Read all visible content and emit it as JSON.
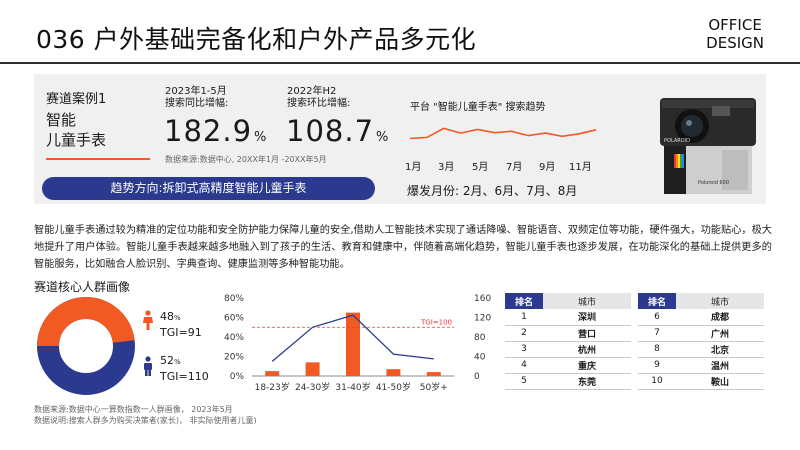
{
  "header": {
    "number_title": "036 户外基础完备化和户外产品多元化",
    "brand_line1": "OFFICE",
    "brand_line2": "DESIGN"
  },
  "hero": {
    "case_label": "赛道案例1",
    "case_title_line1": "智能",
    "case_title_line2": "儿童手表",
    "metric1": {
      "period": "2023年1-5月",
      "label": "搜索同比增幅:",
      "value": "182.9",
      "unit": "%"
    },
    "metric2": {
      "period": "2022年H2",
      "label": "搜索环比增幅:",
      "value": "108.7",
      "unit": "%"
    },
    "source": "数据来源:数据中心, 20XX年1月 -20XX年5月",
    "trend_direction": "趋势方向:拆卸式高精度智能儿童手表",
    "trend_title": "平台 \"智能儿童手表\" 搜索趋势",
    "trend_months": [
      "1月",
      "3月",
      "5月",
      "7月",
      "9月",
      "11月"
    ],
    "trend_values": [
      32,
      35,
      60,
      47,
      57,
      48,
      52,
      40,
      47,
      38,
      45,
      56
    ],
    "peak_months": "爆发月份: 2月、6月、7月、8月",
    "camera_brand": "POLAROID",
    "camera_model": "Poloroid 600"
  },
  "paragraph": "智能儿童手表通过较为精准的定位功能和安全防护能力保障儿童的安全,借助人工智能技术实现了通话降噪、智能语音、双频定位等功能，硬件强大，功能贴心，极大地提升了用户体验。智能儿童手表越来越多地融入到了孩子的生活、教育和健康中，伴随着高端化趋势，智能儿童手表也逐步发展，在功能深化的基础上提供更多的智能服务，比如融合人脸识别、字典查询、健康监测等多种智能功能。",
  "section_title": "赛道核心人群画像",
  "gender": {
    "female": {
      "pct": "48",
      "pct_unit": "%",
      "tgi": "TGI=91",
      "share": 48,
      "color": "#f15a22"
    },
    "male": {
      "pct": "52",
      "pct_unit": "%",
      "tgi": "TGI=110",
      "share": 52,
      "color": "#2b3a8e"
    }
  },
  "chart_data": {
    "type": "bar",
    "categories": [
      "18-23岁",
      "24-30岁",
      "31-40岁",
      "41-50岁",
      "50岁+"
    ],
    "series": [
      {
        "type": "bar",
        "axis": "left",
        "values": [
          5,
          14,
          65,
          7,
          4
        ]
      },
      {
        "type": "line",
        "axis": "right",
        "values": [
          30,
          100,
          125,
          45,
          35
        ]
      }
    ],
    "left_axis": {
      "ticks": [
        "0%",
        "20%",
        "40%",
        "60%",
        "80%"
      ],
      "min": 0,
      "max": 80
    },
    "right_axis": {
      "ticks": [
        "0",
        "40",
        "80",
        "120",
        "160"
      ],
      "min": 0,
      "max": 160
    },
    "reference_line": {
      "value": 100,
      "label": "TGI=100"
    },
    "colors": {
      "bar": "#f15a22",
      "line": "#2b3a8e",
      "ref": "#e53935"
    }
  },
  "ranking": {
    "rank_header": "排名",
    "city_header": "城市",
    "left": [
      {
        "rank": "1",
        "city": "深圳"
      },
      {
        "rank": "2",
        "city": "营口"
      },
      {
        "rank": "3",
        "city": "杭州"
      },
      {
        "rank": "4",
        "city": "重庆"
      },
      {
        "rank": "5",
        "city": "东莞"
      }
    ],
    "right": [
      {
        "rank": "6",
        "city": "成都"
      },
      {
        "rank": "7",
        "city": "广州"
      },
      {
        "rank": "8",
        "city": "北京"
      },
      {
        "rank": "9",
        "city": "温州"
      },
      {
        "rank": "10",
        "city": "鞍山"
      }
    ]
  },
  "footer": {
    "source": "数据来源:数据中心一算数指数一人群画像， 2023年5月",
    "note": "数据说明:搜索人群多为购买决策者(家长)， 非实际使用者儿童)"
  }
}
